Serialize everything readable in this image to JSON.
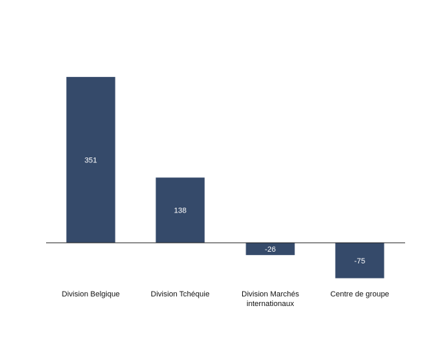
{
  "chart_data": {
    "type": "bar",
    "categories": [
      "Division Belgique",
      "Division Tchéquie",
      "Division Marchés\ninternationaux",
      "Centre de groupe"
    ],
    "values": [
      351,
      138,
      -26,
      -75
    ],
    "data_labels": [
      "351",
      "138",
      "-26",
      "-75"
    ],
    "title": "",
    "xlabel": "",
    "ylabel": "",
    "grid": false,
    "legend": "none",
    "bar_color": "#354a6a",
    "label_color": "#ffffff",
    "axis_color": "#222222"
  }
}
